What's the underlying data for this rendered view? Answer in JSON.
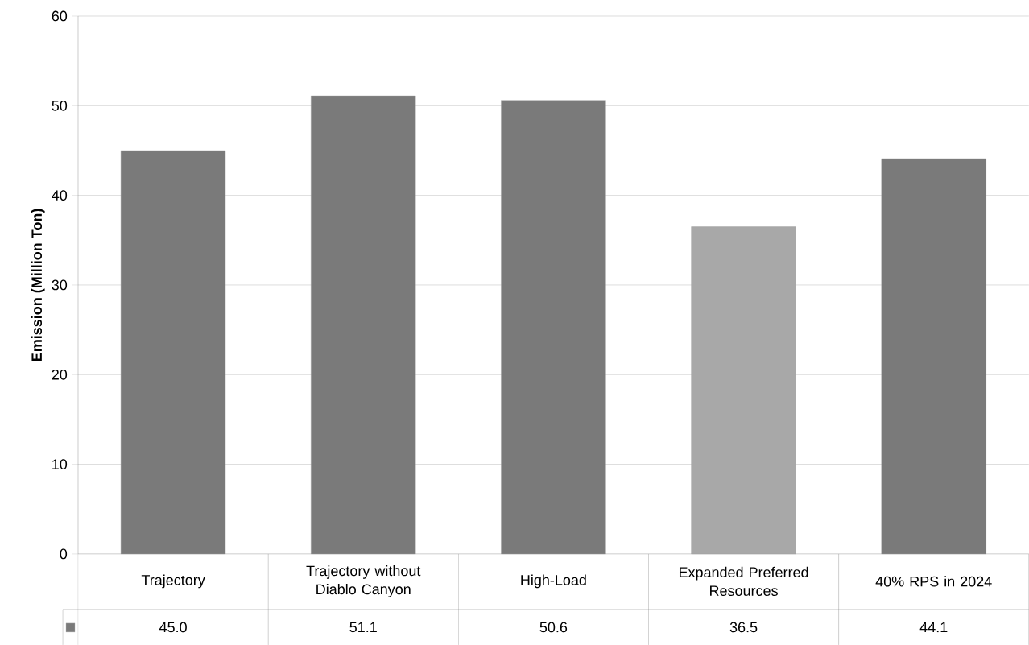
{
  "chart_data": {
    "type": "bar",
    "ylabel": "Emission (Million Ton)",
    "categories": [
      "Trajectory",
      "Trajectory without Diablo Canyon",
      "High-Load",
      "Expanded Preferred Resources",
      "40% RPS in 2024"
    ],
    "series": [
      {
        "values": [
          45.0,
          51.1,
          50.6,
          36.5,
          44.1
        ],
        "colors": [
          "#7a7a7a",
          "#7a7a7a",
          "#7a7a7a",
          "#a8a8a8",
          "#7a7a7a"
        ],
        "color": "#7a7a7a",
        "value_labels": [
          "45.0",
          "51.1",
          "50.6",
          "36.5",
          "44.1"
        ]
      }
    ],
    "ylim": [
      0,
      60
    ],
    "yticks": [
      0,
      10,
      20,
      30,
      40,
      50,
      60
    ],
    "grid": "y"
  }
}
